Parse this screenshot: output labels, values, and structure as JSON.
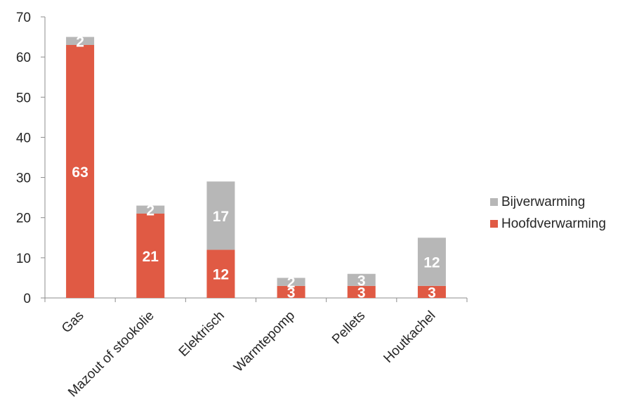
{
  "chart_data": {
    "type": "bar",
    "stacked": true,
    "categories": [
      "Gas",
      "Mazout of stookolie",
      "Elektrisch",
      "Warmtepomp",
      "Pellets",
      "Houtkachel"
    ],
    "series": [
      {
        "name": "Hoofdverwarming",
        "values": [
          63,
          21,
          12,
          3,
          3,
          3
        ],
        "color": "#E05A44"
      },
      {
        "name": "Bijverwarming",
        "values": [
          2,
          2,
          17,
          2,
          3,
          12
        ],
        "color": "#B7B7B7"
      }
    ],
    "y_ticks": [
      "0",
      "10",
      "20",
      "30",
      "40",
      "50",
      "60",
      "70"
    ],
    "ylim": [
      0,
      70
    ],
    "grid": false,
    "legend_position": "right",
    "data_labels": true
  },
  "legend": {
    "items": [
      {
        "label": "Bijverwarming",
        "color": "#B7B7B7"
      },
      {
        "label": "Hoofdverwarming",
        "color": "#E05A44"
      }
    ]
  }
}
